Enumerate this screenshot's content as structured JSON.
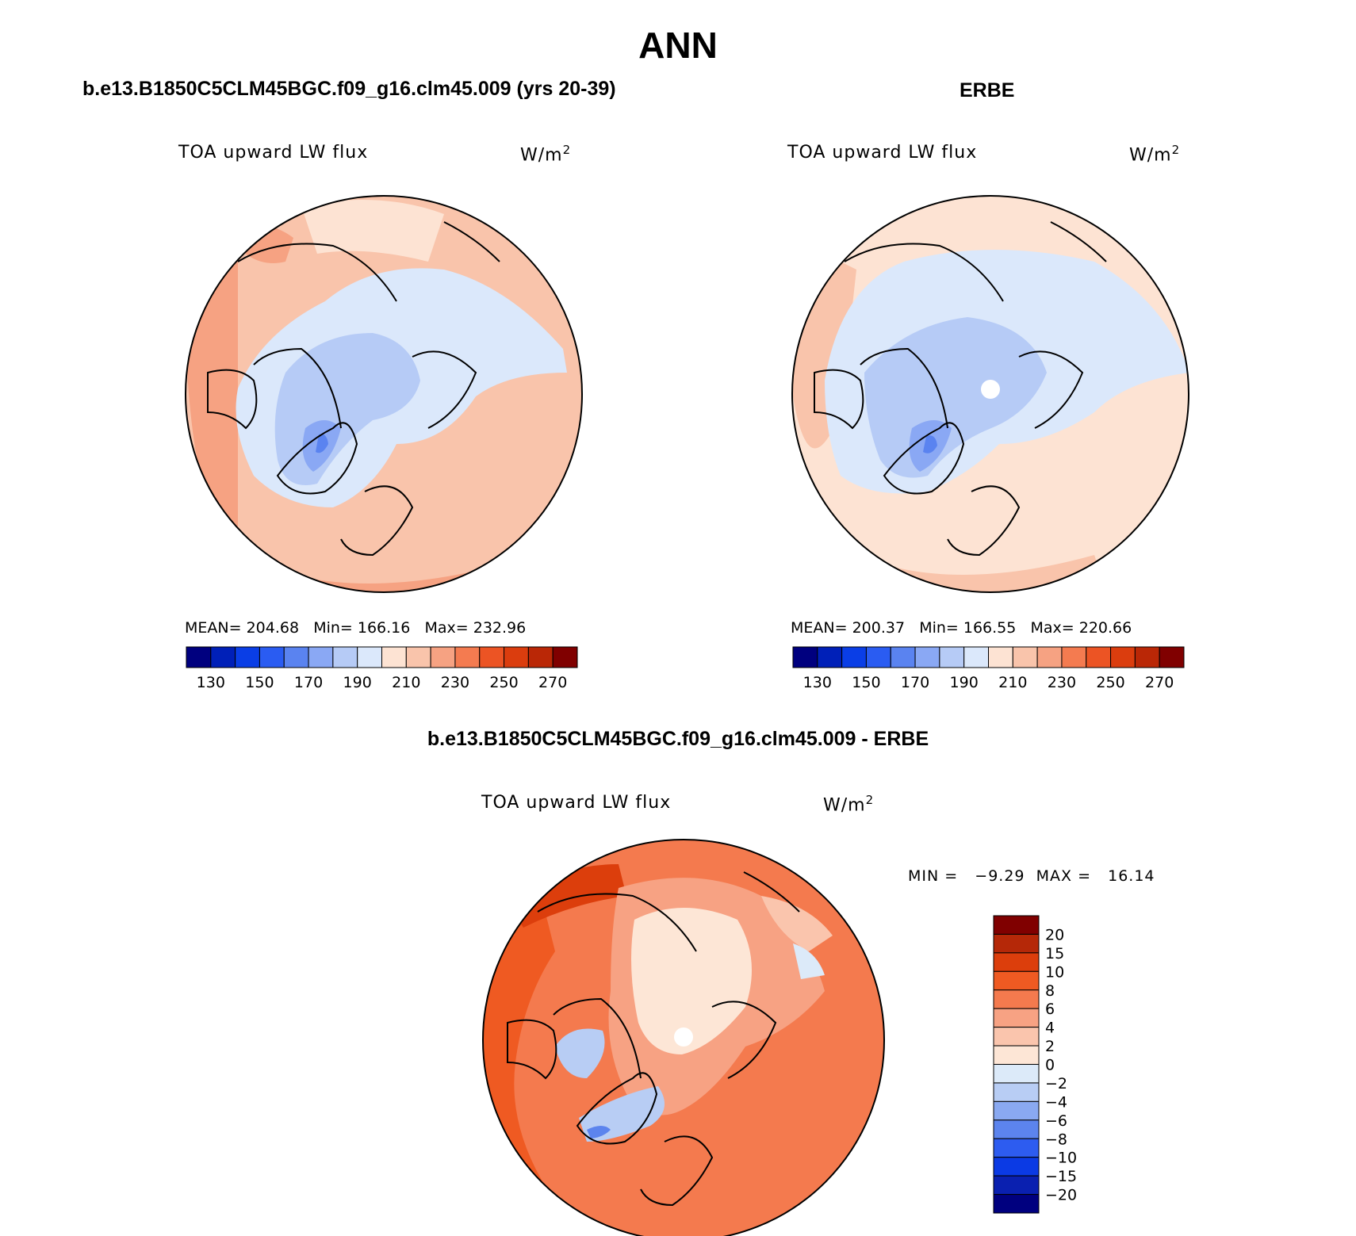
{
  "main_title": "ANN",
  "panels": [
    {
      "id": "model",
      "heading": "b.e13.B1850C5CLM45BGC.f09_g16.clm45.009 (yrs 20-39)",
      "variable": "TOA upward LW flux",
      "units_base": "W/m",
      "units_exp": "2",
      "stats": {
        "mean_label": "MEAN=",
        "mean": "204.68",
        "min_label": "Min=",
        "min": "166.16",
        "max_label": "Max=",
        "max": "232.96"
      },
      "colorbar_ticks": [
        "130",
        "150",
        "170",
        "190",
        "210",
        "230",
        "250",
        "270"
      ]
    },
    {
      "id": "obs",
      "heading": "ERBE",
      "variable": "TOA upward LW flux",
      "units_base": "W/m",
      "units_exp": "2",
      "stats": {
        "mean_label": "MEAN=",
        "mean": "200.37",
        "min_label": "Min=",
        "min": "166.55",
        "max_label": "Max=",
        "max": "220.66"
      },
      "colorbar_ticks": [
        "130",
        "150",
        "170",
        "190",
        "210",
        "230",
        "250",
        "270"
      ]
    }
  ],
  "difference": {
    "heading": "b.e13.B1850C5CLM45BGC.f09_g16.clm45.009 - ERBE",
    "variable": "TOA upward LW flux",
    "units_base": "W/m",
    "units_exp": "2",
    "min_label": "MIN =",
    "min": "−9.29",
    "max_label": "MAX =",
    "max": "16.14",
    "colorbar_ticks": [
      "20",
      "15",
      "10",
      "8",
      "6",
      "4",
      "2",
      "0",
      "−2",
      "−4",
      "−6",
      "−8",
      "−10",
      "−15",
      "−20"
    ]
  },
  "colors": {
    "abs_palette": [
      "#00007f",
      "#0020b8",
      "#0a3ee6",
      "#2a5cf2",
      "#5a83f0",
      "#8aa8f4",
      "#b6cbf6",
      "#dbe8fb",
      "#fde3d3",
      "#f9c4ab",
      "#f6a282",
      "#f47b50",
      "#ec5424",
      "#db3d0e",
      "#ba2706",
      "#800000"
    ],
    "diff_palette": [
      "#800000",
      "#b52808",
      "#dc3e0c",
      "#ef5a22",
      "#f47a4e",
      "#f7a283",
      "#fac5ad",
      "#fde6d6",
      "#dceaf9",
      "#b8cdf4",
      "#8aa9f1",
      "#5c84ee",
      "#2d5cf0",
      "#0b3ae4",
      "#0a20b0",
      "#00007f"
    ]
  }
}
